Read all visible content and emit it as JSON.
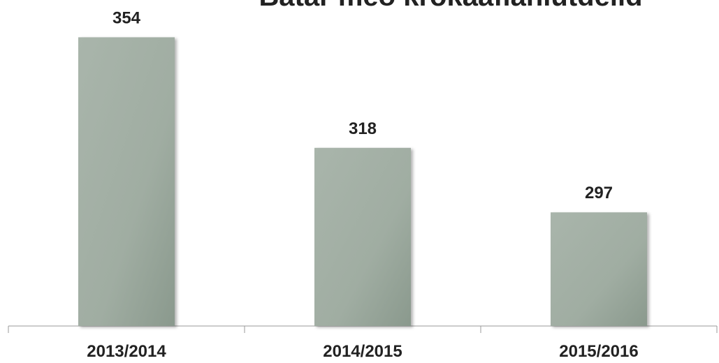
{
  "chart_data": {
    "type": "bar",
    "title": "Bátar með krókaaflahlutdeild",
    "categories": [
      "2013/2014",
      "2014/2015",
      "2015/2016"
    ],
    "values": [
      354,
      318,
      297
    ],
    "color": "#9aa89c",
    "ylim": [
      260,
      360
    ]
  }
}
